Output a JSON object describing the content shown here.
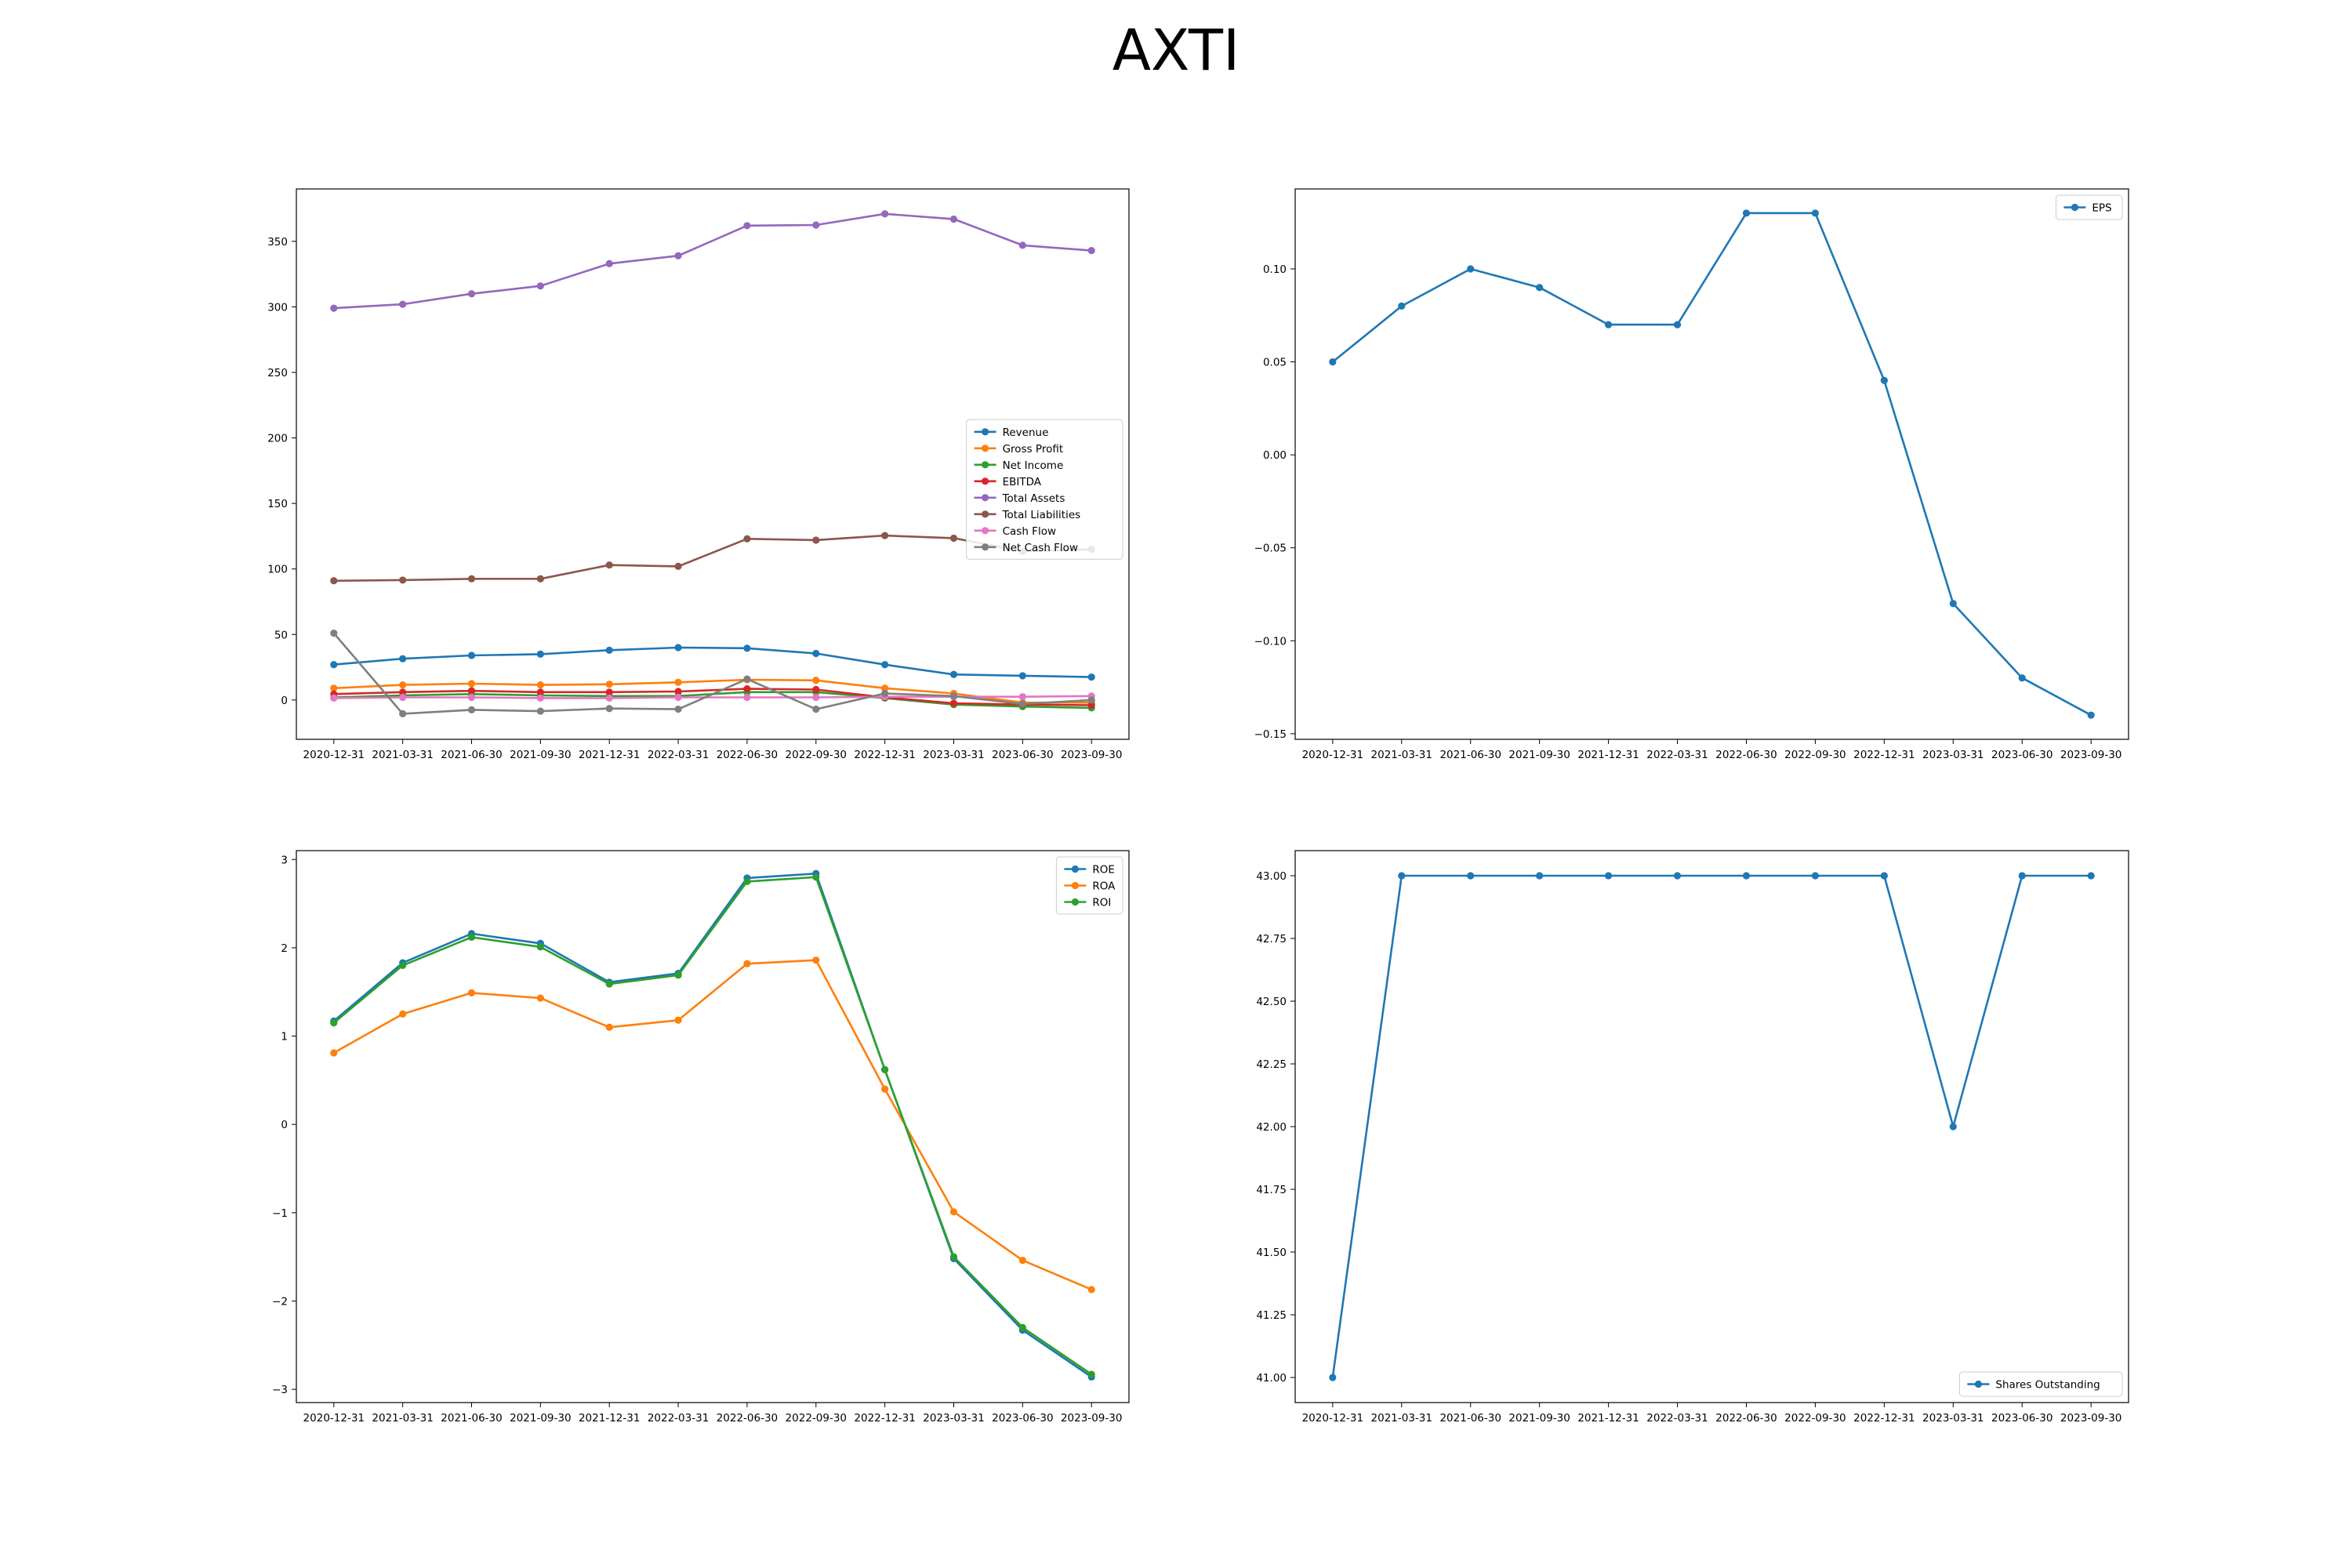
{
  "page": {
    "title": "AXTI"
  },
  "chart_data": [
    {
      "type": "line",
      "x": [
        "2020-12-31",
        "2021-03-31",
        "2021-06-30",
        "2021-09-30",
        "2021-12-31",
        "2022-03-31",
        "2022-06-30",
        "2022-09-30",
        "2022-12-31",
        "2023-03-31",
        "2023-06-30",
        "2023-09-30"
      ],
      "ylim": [
        -30,
        390
      ],
      "yticks": [
        0,
        50,
        100,
        150,
        200,
        250,
        300,
        350
      ],
      "ytick_labels": [
        "0",
        "50",
        "100",
        "150",
        "200",
        "250",
        "300",
        "350"
      ],
      "legend_loc": "center-right",
      "series": [
        {
          "name": "Revenue",
          "color": "#1f77b4",
          "values": [
            27,
            31.5,
            34,
            35,
            38,
            40,
            39.5,
            35.5,
            27,
            19.5,
            18.5,
            17.5
          ]
        },
        {
          "name": "Gross Profit",
          "color": "#ff7f0e",
          "values": [
            9,
            11.5,
            12.5,
            11.5,
            12,
            13.5,
            15.5,
            15,
            9,
            5,
            -2,
            -2
          ]
        },
        {
          "name": "Net Income",
          "color": "#2ca02c",
          "values": [
            2,
            3.5,
            4.5,
            3.5,
            3,
            3,
            6,
            6,
            1.5,
            -3.5,
            -5,
            -6
          ]
        },
        {
          "name": "EBITDA",
          "color": "#d62728",
          "values": [
            4.5,
            6,
            7,
            6,
            6,
            6.5,
            8.5,
            8,
            2,
            -2.5,
            -3.5,
            -4
          ]
        },
        {
          "name": "Total Assets",
          "color": "#9467bd",
          "values": [
            299,
            302,
            310,
            316,
            333,
            339,
            362,
            362.5,
            371,
            367,
            347,
            343
          ]
        },
        {
          "name": "Total Liabilities",
          "color": "#8c564b",
          "values": [
            91,
            91.5,
            92.5,
            92.5,
            103,
            102,
            123,
            122,
            125.5,
            123.5,
            113.5,
            115
          ]
        },
        {
          "name": "Cash Flow",
          "color": "#e377c2",
          "values": [
            1.5,
            2,
            2,
            1.5,
            1.5,
            2,
            2,
            2,
            2.5,
            2.5,
            2.5,
            3
          ]
        },
        {
          "name": "Net Cash Flow",
          "color": "#7f7f7f",
          "values": [
            51,
            -10.5,
            -7.5,
            -8.5,
            -6.5,
            -7,
            16,
            -7,
            5,
            3,
            -3,
            0
          ]
        }
      ]
    },
    {
      "type": "line",
      "x": [
        "2020-12-31",
        "2021-03-31",
        "2021-06-30",
        "2021-09-30",
        "2021-12-31",
        "2022-03-31",
        "2022-06-30",
        "2022-09-30",
        "2022-12-31",
        "2023-03-31",
        "2023-06-30",
        "2023-09-30"
      ],
      "ylim": [
        -0.153,
        0.143
      ],
      "yticks": [
        -0.15,
        -0.1,
        -0.05,
        0.0,
        0.05,
        0.1
      ],
      "ytick_labels": [
        "−0.15",
        "−0.10",
        "−0.05",
        "0.00",
        "0.05",
        "0.10"
      ],
      "legend_loc": "top-right",
      "series": [
        {
          "name": "EPS",
          "color": "#1f77b4",
          "values": [
            0.05,
            0.08,
            0.1,
            0.09,
            0.07,
            0.07,
            0.13,
            0.13,
            0.04,
            -0.08,
            -0.12,
            -0.14
          ]
        }
      ]
    },
    {
      "type": "line",
      "x": [
        "2020-12-31",
        "2021-03-31",
        "2021-06-30",
        "2021-09-30",
        "2021-12-31",
        "2022-03-31",
        "2022-06-30",
        "2022-09-30",
        "2022-12-31",
        "2023-03-31",
        "2023-06-30",
        "2023-09-30"
      ],
      "ylim": [
        -3.15,
        3.1
      ],
      "yticks": [
        -3,
        -2,
        -1,
        0,
        1,
        2,
        3
      ],
      "ytick_labels": [
        "−3",
        "−2",
        "−1",
        "0",
        "1",
        "2",
        "3"
      ],
      "legend_loc": "top-right",
      "series": [
        {
          "name": "ROE",
          "color": "#1f77b4",
          "values": [
            1.17,
            1.83,
            2.16,
            2.05,
            1.61,
            1.71,
            2.79,
            2.84,
            0.62,
            -1.52,
            -2.33,
            -2.86
          ]
        },
        {
          "name": "ROA",
          "color": "#ff7f0e",
          "values": [
            0.81,
            1.25,
            1.49,
            1.43,
            1.1,
            1.18,
            1.82,
            1.86,
            0.4,
            -0.99,
            -1.54,
            -1.87
          ]
        },
        {
          "name": "ROI",
          "color": "#2ca02c",
          "values": [
            1.15,
            1.8,
            2.12,
            2.01,
            1.59,
            1.69,
            2.75,
            2.8,
            0.62,
            -1.5,
            -2.3,
            -2.83
          ]
        }
      ]
    },
    {
      "type": "line",
      "x": [
        "2020-12-31",
        "2021-03-31",
        "2021-06-30",
        "2021-09-30",
        "2021-12-31",
        "2022-03-31",
        "2022-06-30",
        "2022-09-30",
        "2022-12-31",
        "2023-03-31",
        "2023-06-30",
        "2023-09-30"
      ],
      "ylim": [
        40.9,
        43.1
      ],
      "yticks": [
        41.0,
        41.25,
        41.5,
        41.75,
        42.0,
        42.25,
        42.5,
        42.75,
        43.0
      ],
      "ytick_labels": [
        "41.00",
        "41.25",
        "41.50",
        "41.75",
        "42.00",
        "42.25",
        "42.50",
        "42.75",
        "43.00"
      ],
      "legend_loc": "bottom-right",
      "series": [
        {
          "name": "Shares Outstanding",
          "color": "#1f77b4",
          "values": [
            41,
            43,
            43,
            43,
            43,
            43,
            43,
            43,
            43,
            42,
            43,
            43
          ]
        }
      ]
    }
  ]
}
